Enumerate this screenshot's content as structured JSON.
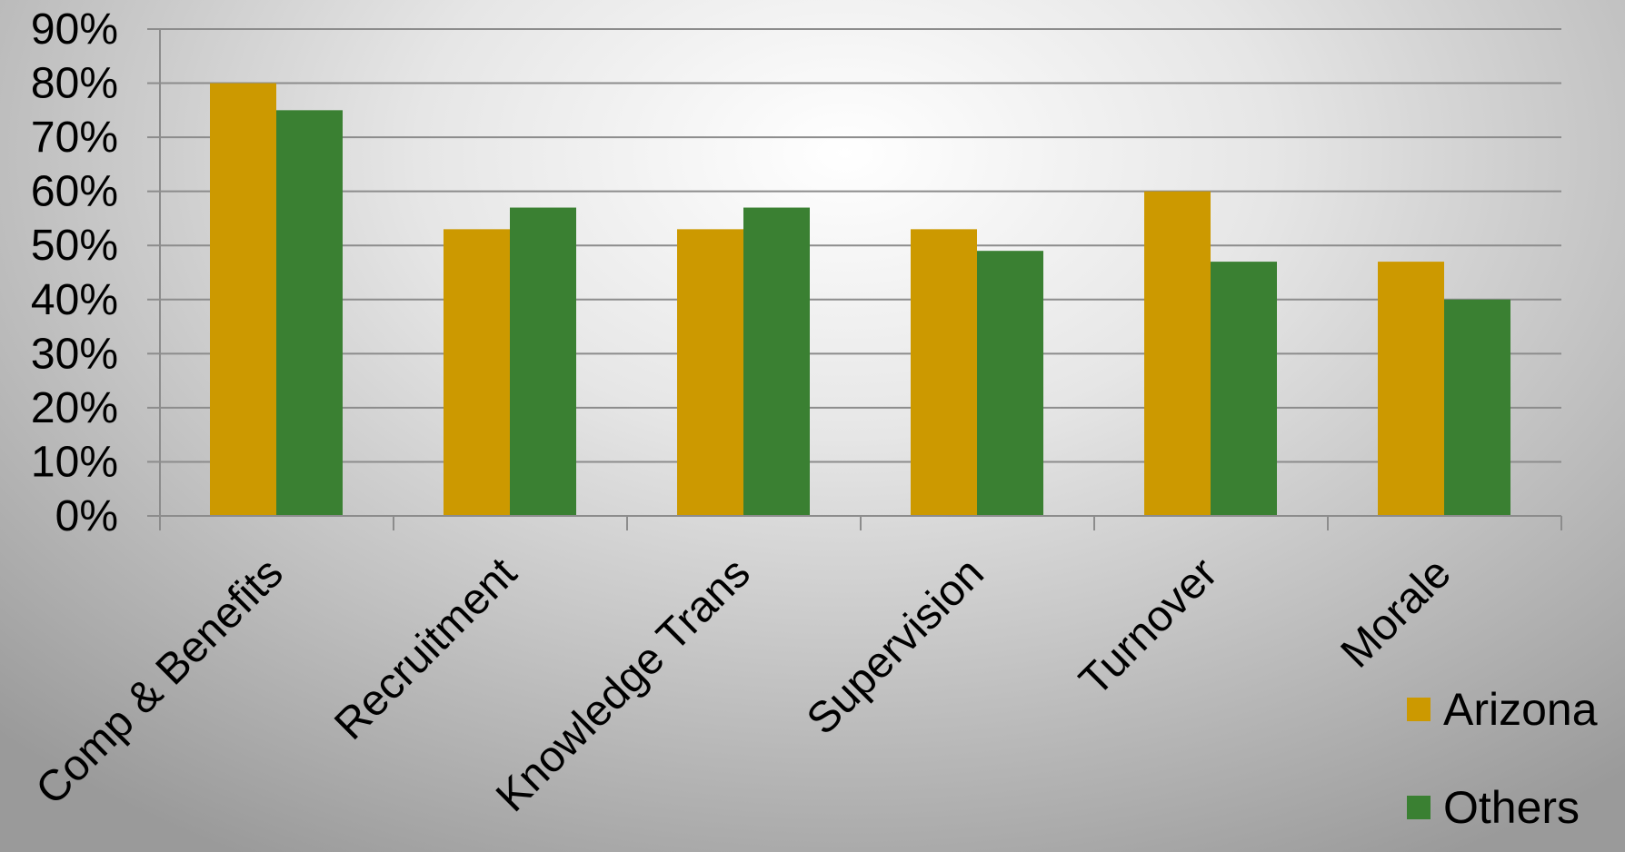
{
  "chart_data": {
    "type": "bar",
    "title": "",
    "xlabel": "",
    "ylabel": "",
    "categories": [
      "Comp & Benefits",
      "Recruitment",
      "Knowledge Trans",
      "Supervision",
      "Turnover",
      "Morale"
    ],
    "series": [
      {
        "name": "Arizona",
        "color": "#cc9900",
        "values": [
          80,
          53,
          53,
          53,
          60,
          47
        ]
      },
      {
        "name": "Others",
        "color": "#3a8032",
        "values": [
          75,
          57,
          57,
          49,
          47,
          40
        ]
      }
    ],
    "y_ticks": [
      "0%",
      "10%",
      "20%",
      "30%",
      "40%",
      "50%",
      "60%",
      "70%",
      "80%",
      "90%"
    ],
    "ylim": [
      0,
      90
    ],
    "y_unit": "%",
    "grid": true,
    "legend_position": "bottom-right"
  }
}
